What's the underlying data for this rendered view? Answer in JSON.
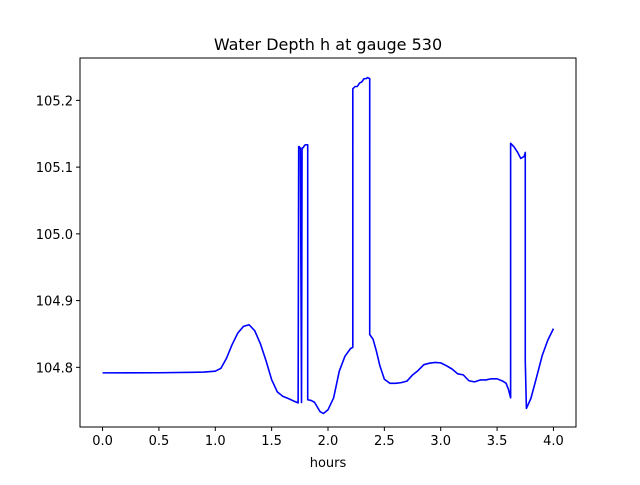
{
  "chart_data": {
    "type": "line",
    "title": "Water Depth h at gauge 530",
    "xlabel": "hours",
    "ylabel": "",
    "xlim": [
      -0.2,
      4.2
    ],
    "ylim": [
      104.7106,
      105.2635
    ],
    "xticks": [
      0.0,
      0.5,
      1.0,
      1.5,
      2.0,
      2.5,
      3.0,
      3.5,
      4.0
    ],
    "xtick_labels": [
      "0.0",
      "0.5",
      "1.0",
      "1.5",
      "2.0",
      "2.5",
      "3.0",
      "3.5",
      "4.0"
    ],
    "yticks": [
      104.8,
      104.9,
      105.0,
      105.1,
      105.2
    ],
    "ytick_labels": [
      "104.8",
      "104.9",
      "105.0",
      "105.1",
      "105.2"
    ],
    "grid": false,
    "legend": "none",
    "series": [
      {
        "color": "#0000ff",
        "points": [
          [
            0.0,
            104.7917
          ],
          [
            0.5,
            104.7919
          ],
          [
            0.8,
            104.7925
          ],
          [
            0.9,
            104.7929
          ],
          [
            1.0,
            104.7942
          ],
          [
            1.05,
            104.7985
          ],
          [
            1.1,
            104.8138
          ],
          [
            1.15,
            104.8343
          ],
          [
            1.2,
            104.8514
          ],
          [
            1.25,
            104.8613
          ],
          [
            1.3,
            104.8638
          ],
          [
            1.35,
            104.8549
          ],
          [
            1.4,
            104.8355
          ],
          [
            1.45,
            104.81
          ],
          [
            1.5,
            104.7815
          ],
          [
            1.55,
            104.7633
          ],
          [
            1.6,
            104.7565
          ],
          [
            1.65,
            104.7531
          ],
          [
            1.7,
            104.7492
          ],
          [
            1.735,
            104.7467
          ],
          [
            1.74,
            105.1306
          ],
          [
            1.745,
            105.1306
          ],
          [
            1.75,
            105.1292
          ],
          [
            1.755,
            105.1285
          ],
          [
            1.765,
            104.7474
          ],
          [
            1.77,
            105.1285
          ],
          [
            1.78,
            105.1292
          ],
          [
            1.79,
            105.132
          ],
          [
            1.8,
            105.1335
          ],
          [
            1.82,
            105.1335
          ],
          [
            1.82,
            104.7514
          ],
          [
            1.85,
            104.7504
          ],
          [
            1.88,
            104.7477
          ],
          [
            1.9,
            104.7421
          ],
          [
            1.93,
            104.7335
          ],
          [
            1.96,
            104.7309
          ],
          [
            2.0,
            104.7364
          ],
          [
            2.05,
            104.7543
          ],
          [
            2.1,
            104.7942
          ],
          [
            2.15,
            104.8165
          ],
          [
            2.2,
            104.8282
          ],
          [
            2.22,
            104.8299
          ],
          [
            2.22,
            105.2173
          ],
          [
            2.24,
            105.2208
          ],
          [
            2.26,
            105.2208
          ],
          [
            2.28,
            105.226
          ],
          [
            2.3,
            105.2277
          ],
          [
            2.32,
            105.2326
          ],
          [
            2.34,
            105.2326
          ],
          [
            2.35,
            105.2342
          ],
          [
            2.37,
            105.2326
          ],
          [
            2.37,
            104.8492
          ],
          [
            2.4,
            104.842
          ],
          [
            2.43,
            104.8238
          ],
          [
            2.46,
            104.8025
          ],
          [
            2.5,
            104.7822
          ],
          [
            2.55,
            104.776
          ],
          [
            2.6,
            104.776
          ],
          [
            2.65,
            104.7771
          ],
          [
            2.7,
            104.7793
          ],
          [
            2.75,
            104.7886
          ],
          [
            2.8,
            104.7953
          ],
          [
            2.85,
            104.804
          ],
          [
            2.9,
            104.8062
          ],
          [
            2.95,
            104.8074
          ],
          [
            3.0,
            104.8067
          ],
          [
            3.05,
            104.8025
          ],
          [
            3.1,
            104.7975
          ],
          [
            3.15,
            104.7903
          ],
          [
            3.2,
            104.7887
          ],
          [
            3.25,
            104.7799
          ],
          [
            3.3,
            104.7782
          ],
          [
            3.35,
            104.7811
          ],
          [
            3.4,
            104.7811
          ],
          [
            3.45,
            104.7829
          ],
          [
            3.5,
            104.7828
          ],
          [
            3.55,
            104.7794
          ],
          [
            3.58,
            104.776
          ],
          [
            3.6,
            104.7674
          ],
          [
            3.62,
            104.7543
          ],
          [
            3.62,
            105.1357
          ],
          [
            3.65,
            105.1305
          ],
          [
            3.68,
            105.1228
          ],
          [
            3.71,
            105.113
          ],
          [
            3.74,
            105.116
          ],
          [
            3.75,
            105.122
          ],
          [
            3.75,
            104.8098
          ],
          [
            3.76,
            104.7385
          ],
          [
            3.8,
            104.7535
          ],
          [
            3.85,
            104.785
          ],
          [
            3.9,
            104.8175
          ],
          [
            3.95,
            104.8408
          ],
          [
            4.0,
            104.858
          ]
        ]
      }
    ]
  }
}
